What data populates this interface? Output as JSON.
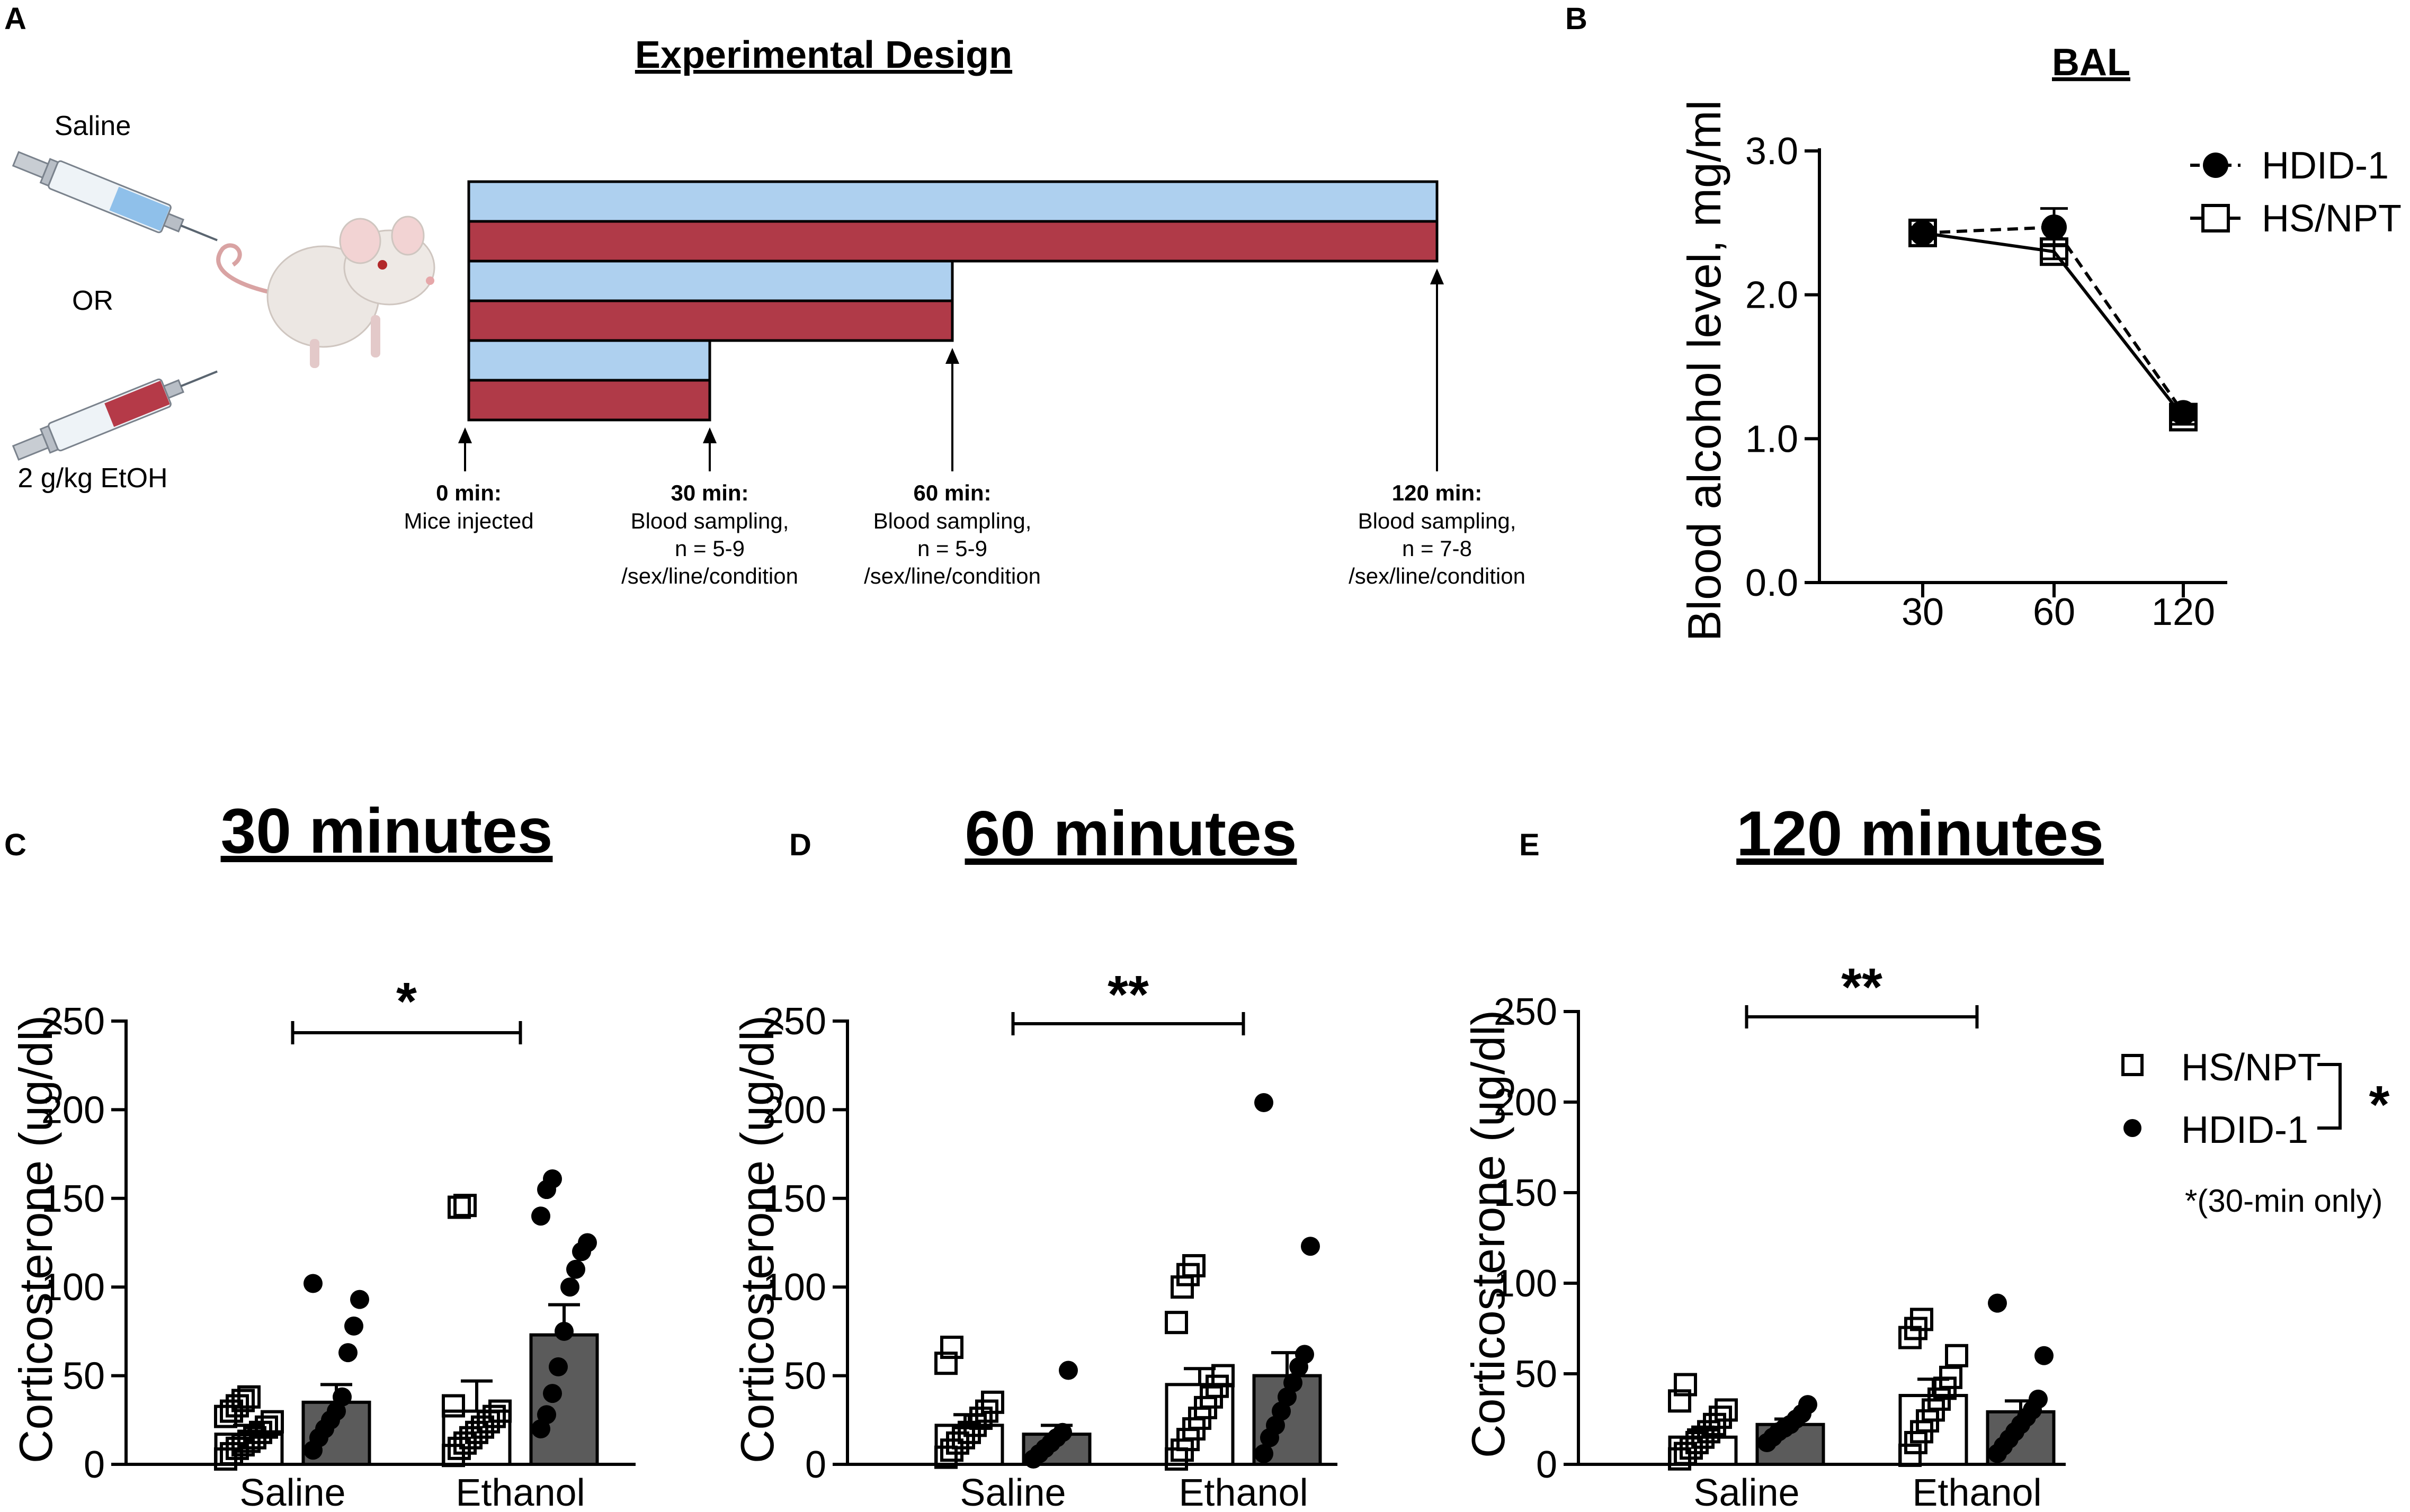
{
  "panel_a": {
    "letter": "A",
    "title": "Experimental Design",
    "saline_label": "Saline",
    "or_label": "OR",
    "ethanol_label": "2 g/kg EtOH",
    "colors": {
      "saline_bar": "#aed0ef",
      "ethanol_bar": "#b03a48"
    },
    "timepoints": [
      {
        "bold": "0 min:",
        "lines": [
          "Mice injected"
        ]
      },
      {
        "bold": "30 min:",
        "lines": [
          "Blood sampling,",
          "n = 5-9",
          "/sex/line/condition"
        ]
      },
      {
        "bold": "60 min:",
        "lines": [
          "Blood sampling,",
          "n = 5-9",
          "/sex/line/condition"
        ]
      },
      {
        "bold": "120 min:",
        "lines": [
          "Blood sampling,",
          "n = 7-8",
          "/sex/line/condition"
        ]
      }
    ]
  },
  "panel_b": {
    "letter": "B"
  },
  "panel_c": {
    "letter": "C"
  },
  "panel_d": {
    "letter": "D"
  },
  "panel_e": {
    "letter": "E"
  },
  "legend": {
    "hs_label": "HS/NPT",
    "hdid_label": "HDID-1",
    "sig_star": "*",
    "note": "*(30-min only)"
  },
  "chart_data": [
    {
      "type": "line",
      "title": "BAL",
      "xlabel": "",
      "ylabel": "Blood alcohol level, mg/ml",
      "categories": [
        "30",
        "60",
        "120"
      ],
      "ylim": [
        0,
        3
      ],
      "yticks": [
        "0.0",
        "1.0",
        "2.0",
        "3.0"
      ],
      "ytick_values": [
        0,
        1,
        2,
        3
      ],
      "series": [
        {
          "name": "HDID-1",
          "style": "dashed-filled-circle",
          "values": [
            2.43,
            2.47,
            1.18
          ],
          "errors": [
            0.04,
            0.13,
            0.05
          ]
        },
        {
          "name": "HS/NPT",
          "style": "solid-open-square",
          "values": [
            2.43,
            2.3,
            1.15
          ],
          "errors": [
            0.03,
            0.05,
            0.05
          ]
        }
      ]
    },
    {
      "type": "bar",
      "title": "30 minutes",
      "ylabel": "Corticosterone (ug/dl)",
      "categories": [
        "Saline",
        "Ethanol"
      ],
      "ylim": [
        0,
        250
      ],
      "yticks": [
        "0",
        "50",
        "100",
        "150",
        "200",
        "250"
      ],
      "ytick_values": [
        0,
        50,
        100,
        150,
        200,
        250
      ],
      "significance": {
        "label": "*",
        "from": "Saline",
        "to": "Ethanol"
      },
      "series": [
        {
          "name": "HS/NPT",
          "values": [
            17,
            30
          ],
          "errors": [
            5,
            17
          ],
          "points": [
            [
              3,
              6,
              9,
              11,
              13,
              15,
              18,
              21,
              24,
              27,
              30,
              33,
              36,
              38
            ],
            [
              5,
              9,
              12,
              15,
              18,
              21,
              24,
              27,
              30,
              33,
              145,
              146
            ]
          ]
        },
        {
          "name": "HDID-1",
          "values": [
            35,
            73
          ],
          "errors": [
            10,
            17
          ],
          "points": [
            [
              8,
              15,
              20,
              25,
              30,
              38,
              63,
              78,
              93,
              102
            ],
            [
              20,
              28,
              40,
              55,
              75,
              100,
              110,
              120,
              125,
              140,
              155,
              161
            ]
          ]
        }
      ]
    },
    {
      "type": "bar",
      "title": "60 minutes",
      "ylabel": "Corticosterone (ug/dl)",
      "categories": [
        "Saline",
        "Ethanol"
      ],
      "ylim": [
        0,
        250
      ],
      "yticks": [
        "0",
        "50",
        "100",
        "150",
        "200",
        "250"
      ],
      "ytick_values": [
        0,
        50,
        100,
        150,
        200,
        250
      ],
      "significance": {
        "label": "**",
        "from": "Saline",
        "to": "Ethanol"
      },
      "series": [
        {
          "name": "HS/NPT",
          "values": [
            22,
            45
          ],
          "errors": [
            6,
            9
          ],
          "points": [
            [
              4,
              8,
              12,
              15,
              18,
              22,
              26,
              30,
              35,
              57,
              66
            ],
            [
              3,
              8,
              14,
              20,
              26,
              32,
              38,
              44,
              50,
              80,
              100,
              107,
              112
            ]
          ]
        },
        {
          "name": "HDID-1",
          "values": [
            17,
            50
          ],
          "errors": [
            5,
            13
          ],
          "points": [
            [
              3,
              6,
              9,
              12,
              15,
              18,
              53
            ],
            [
              6,
              15,
              22,
              30,
              38,
              46,
              55,
              62,
              123,
              204
            ]
          ]
        }
      ]
    },
    {
      "type": "bar",
      "title": "120 minutes",
      "ylabel": "Corticosterone (ug/dl)",
      "categories": [
        "Saline",
        "Ethanol"
      ],
      "ylim": [
        0,
        250
      ],
      "yticks": [
        "0",
        "50",
        "100",
        "150",
        "200",
        "250"
      ],
      "ytick_values": [
        0,
        50,
        100,
        150,
        200,
        250
      ],
      "significance": {
        "label": "**",
        "from": "Saline",
        "to": "Ethanol"
      },
      "series": [
        {
          "name": "HS/NPT",
          "values": [
            15,
            38
          ],
          "errors": [
            4,
            9
          ],
          "points": [
            [
              3,
              6,
              9,
              12,
              15,
              18,
              22,
              26,
              30,
              35,
              44
            ],
            [
              5,
              12,
              18,
              24,
              30,
              36,
              42,
              48,
              60,
              70,
              75,
              80
            ]
          ]
        },
        {
          "name": "HDID-1",
          "values": [
            22,
            29
          ],
          "errors": [
            3,
            6
          ],
          "points": [
            [
              12,
              15,
              18,
              20,
              22,
              25,
              28,
              33
            ],
            [
              6,
              10,
              14,
              18,
              22,
              26,
              30,
              36,
              60,
              89
            ]
          ]
        }
      ]
    }
  ]
}
